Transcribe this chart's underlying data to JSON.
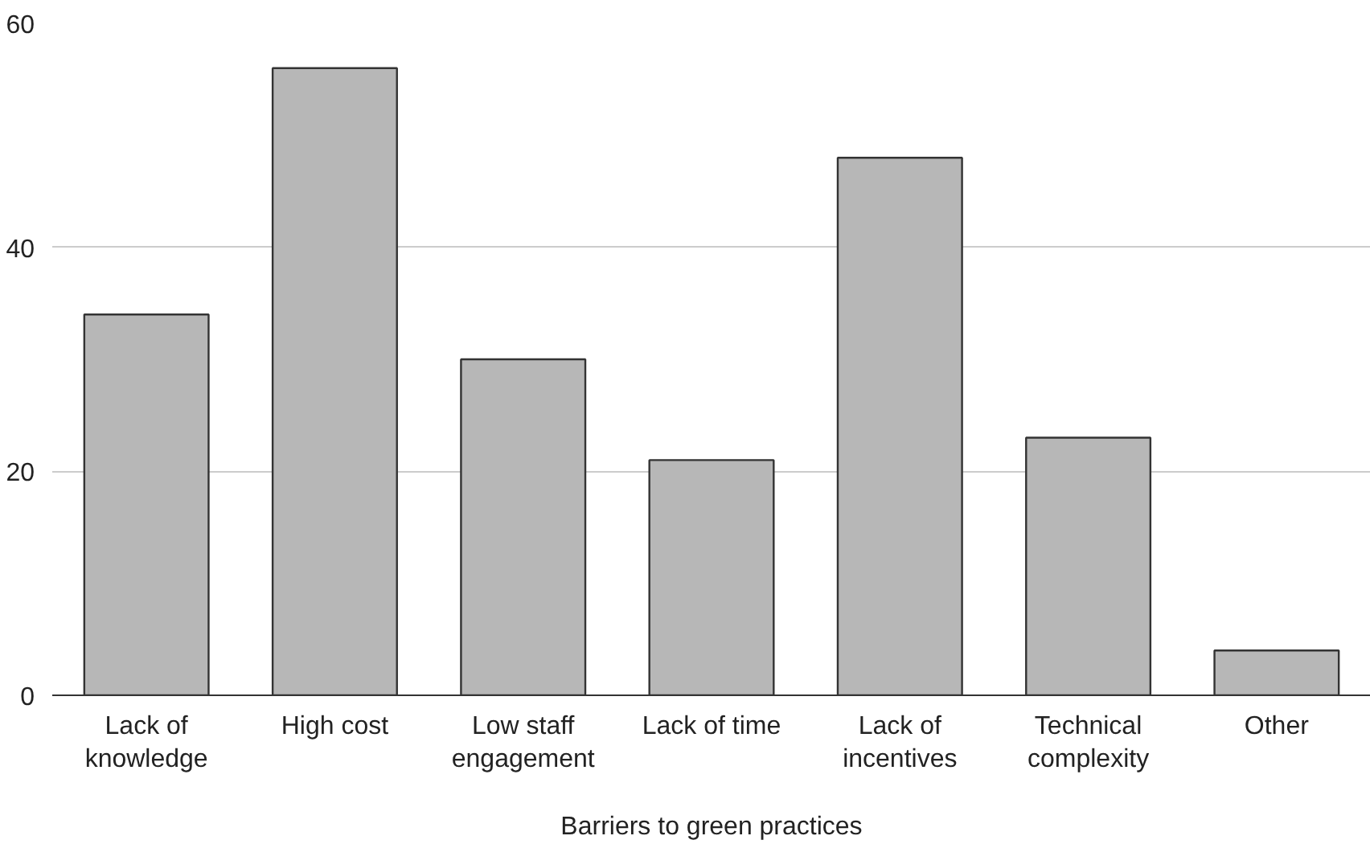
{
  "chart_data": {
    "type": "bar",
    "xlabel": "Barriers to green practices",
    "categories": [
      "Lack of knowledge",
      "High cost",
      "Low staff engagement",
      "Lack of time",
      "Lack of incentives",
      "Technical complexity",
      "Other"
    ],
    "values": [
      34,
      56,
      30,
      21,
      48,
      23,
      4
    ],
    "color": "#b7b7b7",
    "ylim": [
      0,
      60
    ],
    "yticks": [
      0,
      20,
      40,
      60
    ],
    "grid": "y"
  }
}
